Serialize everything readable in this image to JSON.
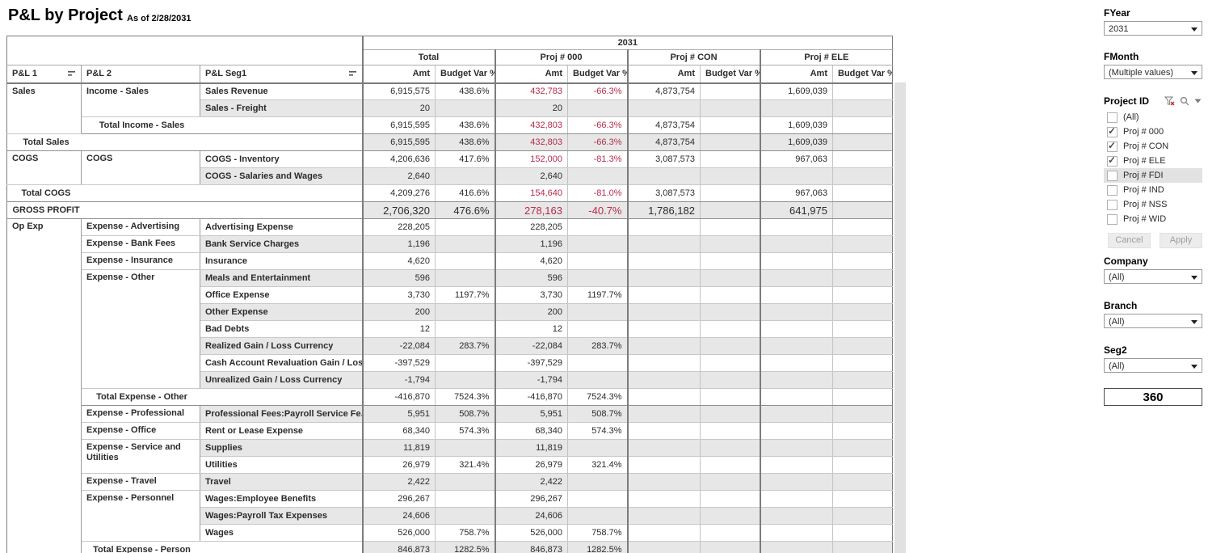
{
  "header": {
    "title": "P&L by Project",
    "subtitle": "As of 2/28/2031"
  },
  "table": {
    "year": "2031",
    "col_pl1": "P&L 1",
    "col_pl2": "P&L 2",
    "col_seg1": "P&L Seg1",
    "groups": [
      "Total",
      "Proj # 000",
      "Proj # CON",
      "Proj # ELE"
    ],
    "sub": [
      "Amt",
      "Budget Var %"
    ],
    "rows": [
      {
        "pl1": {
          "t": "Sales",
          "rs": 3
        },
        "pl2": {
          "t": "Income - Sales",
          "rs": 2
        },
        "seg1": "Sales Revenue",
        "v": [
          "6,915,575",
          "438.6%",
          "432,783",
          "-66.3%",
          "4,873,754",
          "",
          "1,609,039",
          ""
        ],
        "red": [
          2,
          3
        ]
      },
      {
        "seg1": "Sales - Freight",
        "v": [
          "20",
          "",
          "20",
          "",
          "",
          "",
          "",
          ""
        ]
      },
      {
        "total": {
          "t": "Total Income - Sales",
          "level": "pl2"
        },
        "v": [
          "6,915,595",
          "438.6%",
          "432,803",
          "-66.3%",
          "4,873,754",
          "",
          "1,609,039",
          ""
        ],
        "red": [
          2,
          3
        ]
      },
      {
        "total": {
          "t": "Total Sales",
          "level": "pl1"
        },
        "v": [
          "6,915,595",
          "438.6%",
          "432,803",
          "-66.3%",
          "4,873,754",
          "",
          "1,609,039",
          ""
        ],
        "red": [
          2,
          3
        ]
      },
      {
        "pl1": {
          "t": "COGS",
          "rs": 2
        },
        "pl2": {
          "t": "COGS",
          "rs": 2
        },
        "seg1": "COGS - Inventory",
        "v": [
          "4,206,636",
          "417.6%",
          "152,000",
          "-81.3%",
          "3,087,573",
          "",
          "967,063",
          ""
        ],
        "red": [
          2,
          3
        ]
      },
      {
        "seg1": "COGS - Salaries and Wages",
        "v": [
          "2,640",
          "",
          "2,640",
          "",
          "",
          "",
          "",
          ""
        ]
      },
      {
        "total": {
          "t": "Total COGS",
          "level": "pl1"
        },
        "v": [
          "4,209,276",
          "416.6%",
          "154,640",
          "-81.0%",
          "3,087,573",
          "",
          "967,063",
          ""
        ],
        "red": [
          2,
          3
        ]
      },
      {
        "total": {
          "t": "GROSS PROFIT",
          "level": "pl1"
        },
        "big": true,
        "v": [
          "2,706,320",
          "476.6%",
          "278,163",
          "-40.7%",
          "1,786,182",
          "",
          "641,975",
          ""
        ],
        "red": [
          2,
          3
        ]
      },
      {
        "pl1": {
          "t": "Op Exp",
          "rs": 20
        },
        "pl2": {
          "t": "Expense - Advertising",
          "rs": 1
        },
        "seg1": "Advertising Expense",
        "v": [
          "228,205",
          "",
          "228,205",
          "",
          "",
          "",
          "",
          ""
        ]
      },
      {
        "pl2": {
          "t": "Expense - Bank Fees",
          "rs": 1
        },
        "seg1": "Bank Service Charges",
        "v": [
          "1,196",
          "",
          "1,196",
          "",
          "",
          "",
          "",
          ""
        ]
      },
      {
        "pl2": {
          "t": "Expense - Insurance",
          "rs": 1
        },
        "seg1": "Insurance",
        "v": [
          "4,620",
          "",
          "4,620",
          "",
          "",
          "",
          "",
          ""
        ]
      },
      {
        "pl2": {
          "t": "Expense - Other",
          "rs": 7
        },
        "seg1": "Meals and Entertainment",
        "v": [
          "596",
          "",
          "596",
          "",
          "",
          "",
          "",
          ""
        ]
      },
      {
        "seg1": "Office Expense",
        "v": [
          "3,730",
          "1197.7%",
          "3,730",
          "1197.7%",
          "",
          "",
          "",
          ""
        ]
      },
      {
        "seg1": "Other Expense",
        "v": [
          "200",
          "",
          "200",
          "",
          "",
          "",
          "",
          ""
        ]
      },
      {
        "seg1": "Bad Debts",
        "v": [
          "12",
          "",
          "12",
          "",
          "",
          "",
          "",
          ""
        ]
      },
      {
        "seg1": "Realized Gain / Loss Currency",
        "v": [
          "-22,084",
          "283.7%",
          "-22,084",
          "283.7%",
          "",
          "",
          "",
          ""
        ]
      },
      {
        "seg1": "Cash Account Revaluation Gain / Loss",
        "v": [
          "-397,529",
          "",
          "-397,529",
          "",
          "",
          "",
          "",
          ""
        ]
      },
      {
        "seg1": "Unrealized Gain / Loss Currency",
        "v": [
          "-1,794",
          "",
          "-1,794",
          "",
          "",
          "",
          "",
          ""
        ]
      },
      {
        "total": {
          "t": "Total Expense - Other",
          "level": "pl2"
        },
        "v": [
          "-416,870",
          "7524.3%",
          "-416,870",
          "7524.3%",
          "",
          "",
          "",
          ""
        ]
      },
      {
        "pl2": {
          "t": "Expense - Professional",
          "rs": 1
        },
        "seg1": "Professional Fees:Payroll Service Fe..",
        "v": [
          "5,951",
          "508.7%",
          "5,951",
          "508.7%",
          "",
          "",
          "",
          ""
        ]
      },
      {
        "pl2": {
          "t": "Expense - Office",
          "rs": 1
        },
        "seg1": "Rent or Lease Expense",
        "v": [
          "68,340",
          "574.3%",
          "68,340",
          "574.3%",
          "",
          "",
          "",
          ""
        ]
      },
      {
        "pl2": {
          "t": "Expense - Service and Utilities",
          "rs": 2
        },
        "seg1": "Supplies",
        "v": [
          "11,819",
          "",
          "11,819",
          "",
          "",
          "",
          "",
          ""
        ]
      },
      {
        "seg1": "Utilities",
        "v": [
          "26,979",
          "321.4%",
          "26,979",
          "321.4%",
          "",
          "",
          "",
          ""
        ]
      },
      {
        "pl2": {
          "t": "Expense - Travel",
          "rs": 1
        },
        "seg1": "Travel",
        "v": [
          "2,422",
          "",
          "2,422",
          "",
          "",
          "",
          "",
          ""
        ]
      },
      {
        "pl2": {
          "t": "Expense - Personnel",
          "rs": 3
        },
        "seg1": "Wages:Employee Benefits",
        "v": [
          "296,267",
          "",
          "296,267",
          "",
          "",
          "",
          "",
          ""
        ]
      },
      {
        "seg1": "Wages:Payroll Tax Expenses",
        "v": [
          "24,606",
          "",
          "24,606",
          "",
          "",
          "",
          "",
          ""
        ]
      },
      {
        "seg1": "Wages",
        "v": [
          "526,000",
          "758.7%",
          "526,000",
          "758.7%",
          "",
          "",
          "",
          ""
        ]
      },
      {
        "total": {
          "t": "Total Expense - Person",
          "level": "pl2"
        },
        "v": [
          "846,873",
          "1282.5%",
          "846,873",
          "1282.5%",
          "",
          "",
          "",
          ""
        ]
      }
    ]
  },
  "filters": {
    "fyear": {
      "label": "FYear",
      "value": "2031"
    },
    "fmonth": {
      "label": "FMonth",
      "value": "(Multiple values)"
    },
    "project": {
      "label": "Project ID",
      "icons": [
        "filter-clear-icon",
        "search-icon",
        "dropdown-icon"
      ],
      "items": [
        {
          "label": "(All)",
          "checked": false
        },
        {
          "label": "Proj # 000",
          "checked": true
        },
        {
          "label": "Proj # CON",
          "checked": true
        },
        {
          "label": "Proj # ELE",
          "checked": true
        },
        {
          "label": "Proj # FDI",
          "checked": false,
          "highlight": true
        },
        {
          "label": "Proj # IND",
          "checked": false
        },
        {
          "label": "Proj # NSS",
          "checked": false
        },
        {
          "label": "Proj # WID",
          "checked": false
        }
      ],
      "cancel": "Cancel",
      "apply": "Apply"
    },
    "company": {
      "label": "Company",
      "value": "(All)"
    },
    "branch": {
      "label": "Branch",
      "value": "(All)"
    },
    "seg2": {
      "label": "Seg2",
      "value": "(All)"
    },
    "counter": "360"
  },
  "colors": {
    "negative": "#b82b4a",
    "band": "#e7e7e7"
  }
}
